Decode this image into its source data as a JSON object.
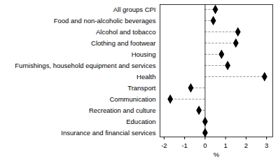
{
  "chart_data": {
    "type": "dot",
    "orientation": "horizontal",
    "categories": [
      "All groups CPI",
      "Food and non-alcoholic beverages",
      "Alcohol and tobacco",
      "Clothing and footwear",
      "Housing",
      "Furnishings, household equipment and services",
      "Health",
      "Transport",
      "Communication",
      "Recreation and culture",
      "Education",
      "Insurance and financial services"
    ],
    "values": [
      0.5,
      0.4,
      1.6,
      1.5,
      0.8,
      1.1,
      2.9,
      -0.7,
      -1.7,
      -0.3,
      0.0,
      0.0
    ],
    "color": "#000000",
    "marker": "diamond",
    "line_style": "dashed",
    "x_label": "%",
    "xlim": [
      -2.2,
      3.3
    ],
    "xticks": [
      -2,
      -1,
      0,
      1,
      2,
      3
    ]
  }
}
